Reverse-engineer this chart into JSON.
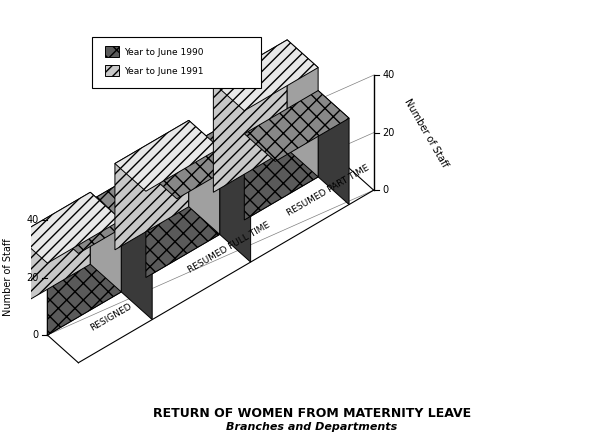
{
  "categories": [
    "RESIGNED",
    "RESUMED FULL TIME",
    "RESUMED PART TIME"
  ],
  "series": [
    "Year to June 1990",
    "Year to June 1991"
  ],
  "values_1990": [
    38,
    37,
    30
  ],
  "values_1991": [
    25,
    30,
    38
  ],
  "ymax": 40,
  "yticks": [
    0,
    20,
    40
  ],
  "ylabel": "Number of Staff",
  "title_line1": "RETURN OF WOMEN FROM MATERNITY LEAVE",
  "title_line2": "Branches and Departments",
  "color_1990_face": "#5a5a5a",
  "color_1990_top": "#888888",
  "color_1990_side": "#3a3a3a",
  "color_1991_face": "#c8c8c8",
  "color_1991_top": "#e8e8e8",
  "color_1991_side": "#a0a0a0",
  "hatch_1990": "xx",
  "hatch_1991": "///",
  "bg_color": "#f0f0f0"
}
